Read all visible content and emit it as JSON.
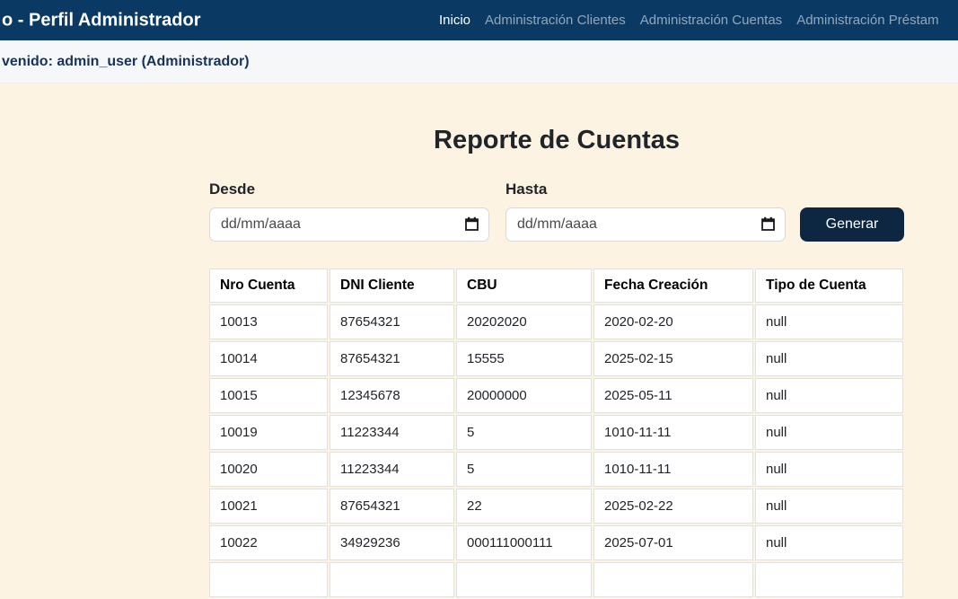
{
  "navbar": {
    "brand": "o - Perfil Administrador",
    "items": [
      {
        "name": "nav-inicio",
        "label": "Inicio",
        "active": true
      },
      {
        "name": "nav-administracion-clientes",
        "label": "Administración Clientes",
        "active": false
      },
      {
        "name": "nav-administracion-cuentas",
        "label": "Administración Cuentas",
        "active": false
      },
      {
        "name": "nav-administracion-prestamos",
        "label": "Administración Préstam",
        "active": false
      }
    ]
  },
  "welcome": {
    "text": "venido: admin_user (Administrador)"
  },
  "report": {
    "title": "Reporte de Cuentas",
    "from_label": "Desde",
    "to_label": "Hasta",
    "date_placeholder": "dd/mm/aaaa",
    "generate_label": "Generar"
  },
  "table": {
    "columns": [
      "Nro Cuenta",
      "DNI Cliente",
      "CBU",
      "Fecha Creación",
      "Tipo de Cuenta"
    ],
    "rows": [
      [
        "10013",
        "87654321",
        "20202020",
        "2020-02-20",
        "null"
      ],
      [
        "10014",
        "87654321",
        "15555",
        "2025-02-15",
        "null"
      ],
      [
        "10015",
        "12345678",
        "20000000",
        "2025-05-11",
        "null"
      ],
      [
        "10019",
        "11223344",
        "5",
        "1010-11-11",
        "null"
      ],
      [
        "10020",
        "11223344",
        "5",
        "1010-11-11",
        "null"
      ],
      [
        "10021",
        "87654321",
        "22",
        "2025-02-22",
        "null"
      ],
      [
        "10022",
        "34929236",
        "000111000111",
        "2025-07-01",
        "null"
      ]
    ],
    "partial_row": [
      "",
      "",
      "",
      "",
      ""
    ]
  },
  "colors": {
    "navbar_bg": "#0a3a63",
    "nav_active": "#ffffff",
    "nav_inactive": "rgba(255,255,255,0.55)",
    "welcome_bar_bg": "#f6f7f9",
    "welcome_text": "#17335b",
    "page_bg": "#fdf3e2",
    "button_bg": "#0d2742",
    "table_border": "#dee2e6",
    "cell_bg": "#ffffff"
  }
}
